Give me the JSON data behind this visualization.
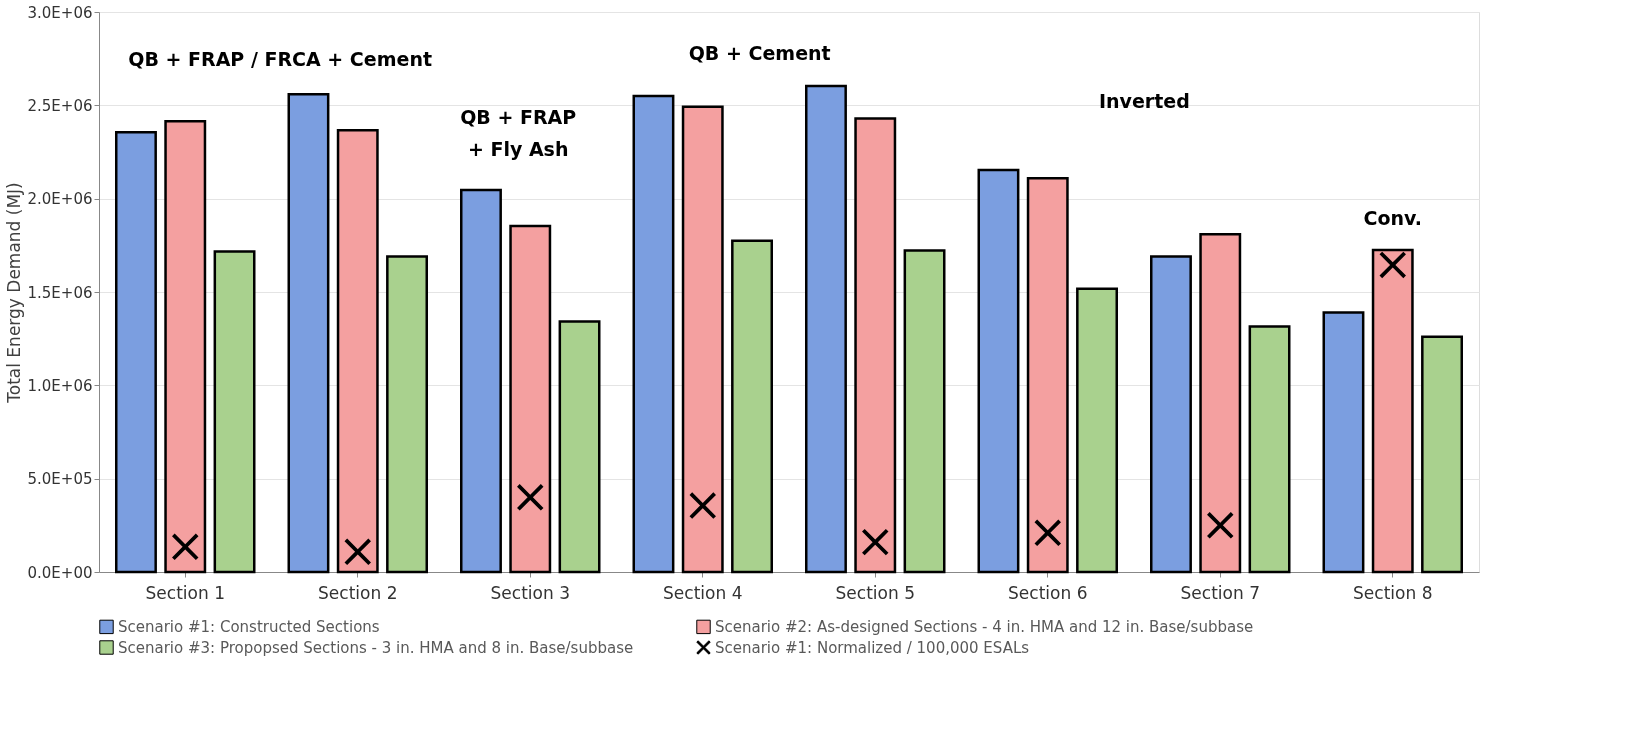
{
  "chart_data": {
    "type": "bar",
    "ylabel": "Total Energy Demand (MJ)",
    "categories": [
      "Section 1",
      "Section 2",
      "Section 3",
      "Section 4",
      "Section 5",
      "Section 6",
      "Section 7",
      "Section 8"
    ],
    "series": [
      {
        "name": "Scenario #1: Constructed Sections",
        "color": "#7b9ee0",
        "values": [
          2356000,
          2560000,
          2046000,
          2550000,
          2604000,
          2154000,
          1690000,
          1390000
        ]
      },
      {
        "name": "Scenario #2: As-designed Sections  - 4 in. HMA and 12 in. Base/subbase",
        "color": "#f4a0a0",
        "values": [
          2415000,
          2366000,
          1854000,
          2493000,
          2429000,
          2110000,
          1810000,
          1725000
        ]
      },
      {
        "name": "Scenario #3: Propopsed Sections - 3 in. HMA and 8 in. Base/subbase",
        "color": "#a9d18e",
        "values": [
          1717000,
          1690000,
          1342000,
          1774000,
          1722000,
          1518000,
          1315000,
          1260000
        ]
      },
      {
        "name": "Scenario #1: Normalized / 100,000 ESALs",
        "type": "scatter",
        "marker": "cross",
        "color": "#000000",
        "x": [
          "Section 1",
          "Section 2",
          "Section 3",
          "Section 4",
          "Section 5",
          "Section 6",
          "Section 7",
          "Section 8"
        ],
        "values": [
          135000,
          108000,
          400000,
          356000,
          160000,
          210000,
          250000,
          1645000
        ]
      }
    ],
    "ylim": [
      0,
      3000000
    ],
    "yticks": [
      {
        "value": 0,
        "label": "0.0E+00"
      },
      {
        "value": 500000,
        "label": "5.0E+05"
      },
      {
        "value": 1000000,
        "label": "1.0E+06"
      },
      {
        "value": 1500000,
        "label": "1.5E+06"
      },
      {
        "value": 2000000,
        "label": "2.0E+06"
      },
      {
        "value": 2500000,
        "label": "2.5E+06"
      },
      {
        "value": 3000000,
        "label": "3.0E+06"
      }
    ],
    "grid": "y",
    "legend": "bottom",
    "annotations": [
      "QB + FRAP / FRCA + Cement",
      "QB + FRAP\n+ Fly Ash",
      "QB + Cement",
      "Inverted",
      "Conv."
    ]
  }
}
